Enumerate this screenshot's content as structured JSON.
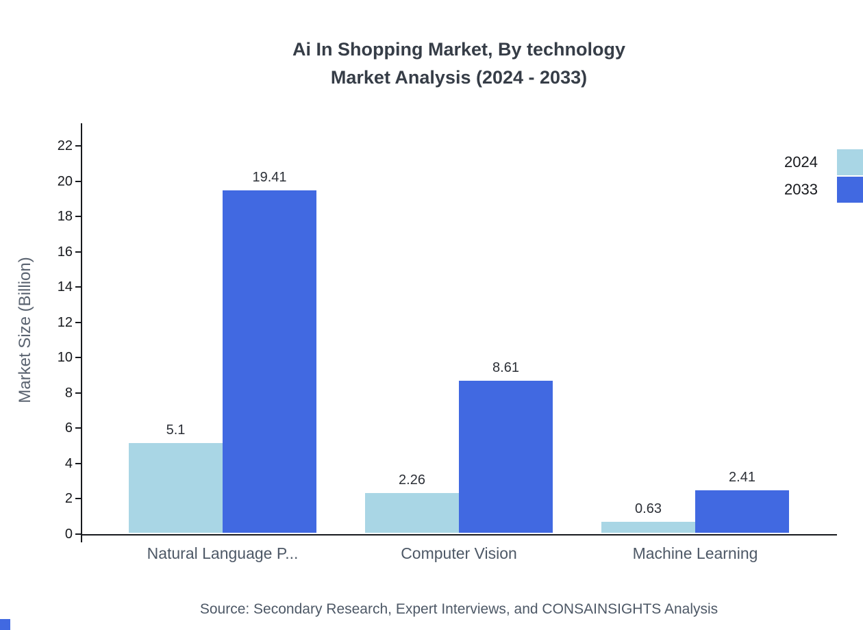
{
  "title": {
    "line1": "Ai In Shopping Market, By technology",
    "line2": "Market Analysis (2024 - 2033)"
  },
  "chart_data": {
    "type": "bar",
    "categories": [
      "Natural Language P...",
      "Computer Vision",
      "Machine Learning"
    ],
    "series": [
      {
        "name": "2024",
        "color": "#a9d6e5",
        "values": [
          5.1,
          2.26,
          0.63
        ]
      },
      {
        "name": "2033",
        "color": "#4169e1",
        "values": [
          19.41,
          8.61,
          2.41
        ]
      }
    ],
    "title": "Ai In Shopping Market, By technology Market Analysis (2024 - 2033)",
    "xlabel": "",
    "ylabel": "Market Size (Billion)",
    "ylim": [
      0,
      23.3
    ],
    "ytick_step": 2,
    "ytick_max": 22,
    "grid": false,
    "legend_position": "top-right"
  },
  "source": "Source: Secondary Research, Expert Interviews, and CONSAINSIGHTS Analysis"
}
